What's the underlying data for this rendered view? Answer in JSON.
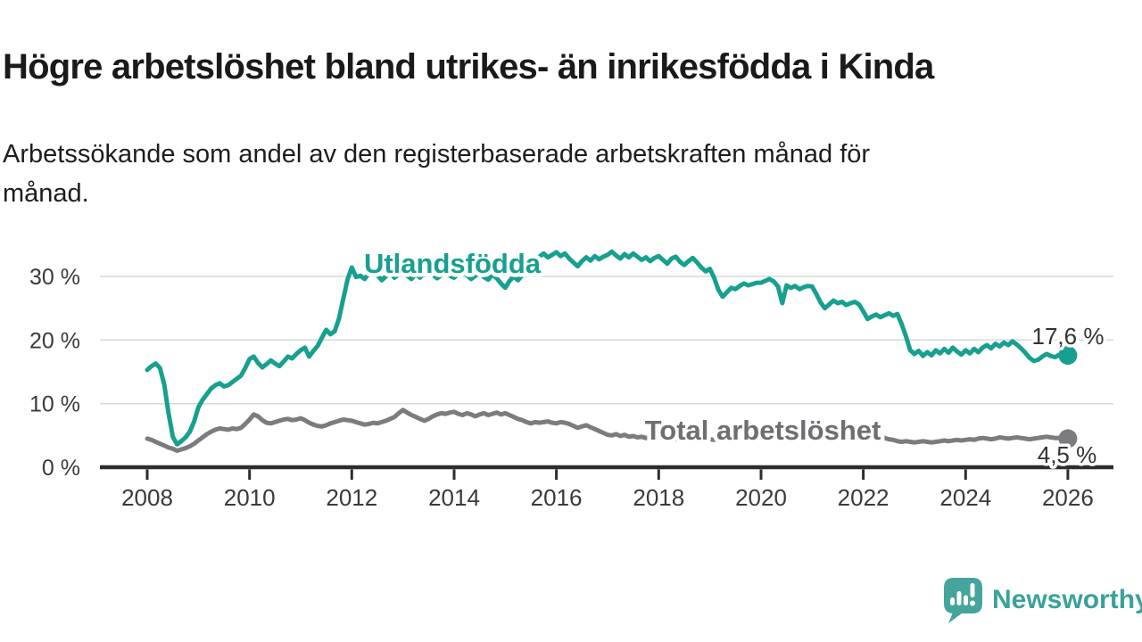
{
  "header": {
    "title": "Högre arbetslöshet bland utrikes- än inrikesfödda i Kinda",
    "subtitle": "Arbetssökande som andel av den registerbaserade arbetskraften månad för månad.",
    "subtitle_line1": "Arbetssökande som andel av den registerbaserade arbetskraften månad för",
    "subtitle_line2": "månad."
  },
  "chart_data": {
    "type": "line",
    "title": "Arbetssökande som andel av den registerbaserade arbetskraften månad för månad",
    "xlabel": "",
    "ylabel": "",
    "grid": "horizontal",
    "ylim": [
      0,
      35
    ],
    "x_range_years": [
      2008,
      2026.08
    ],
    "y_ticks": [
      {
        "value": 0,
        "label": "0 %"
      },
      {
        "value": 10,
        "label": "10 %"
      },
      {
        "value": 20,
        "label": "20 %"
      },
      {
        "value": 30,
        "label": "30 %"
      }
    ],
    "x_ticks": [
      "2008",
      "2010",
      "2012",
      "2014",
      "2016",
      "2018",
      "2020",
      "2022",
      "2024",
      "2026"
    ],
    "x_tick_years": [
      2008,
      2010,
      2012,
      2014,
      2016,
      2018,
      2020,
      2022,
      2024,
      2026
    ],
    "colors": {
      "grid": "#d9d9d9",
      "axis": "#2d2d2d",
      "tick_text": "#3a3a3a",
      "end_label_text": "#333333"
    },
    "series": [
      {
        "name": "Utlandsfödda",
        "slug": "utlandsfodda",
        "color": "#17a08f",
        "end_label": "17,6 %",
        "end_value": 17.6,
        "start_year": 2008,
        "points_per_year": 12,
        "monthly_values": [
          15.3,
          15.9,
          16.3,
          15.6,
          13.0,
          8.5,
          4.8,
          3.6,
          4.1,
          4.7,
          5.6,
          7.2,
          9.4,
          10.6,
          11.5,
          12.4,
          12.9,
          13.2,
          12.7,
          12.9,
          13.4,
          13.9,
          14.4,
          15.6,
          17.0,
          17.4,
          16.4,
          15.7,
          16.2,
          16.8,
          16.3,
          15.9,
          16.6,
          17.4,
          17.1,
          17.8,
          18.4,
          18.8,
          17.4,
          18.3,
          19.1,
          20.4,
          21.6,
          20.9,
          21.4,
          23.4,
          26.5,
          29.5,
          31.4,
          29.9,
          30.1,
          29.6,
          30.5,
          31.0,
          30.2,
          29.4,
          30.0,
          30.6,
          29.8,
          30.3,
          30.8,
          30.1,
          29.6,
          30.4,
          29.8,
          30.6,
          31.1,
          30.3,
          29.7,
          30.2,
          30.8,
          30.1,
          29.8,
          30.4,
          30.9,
          30.2,
          29.6,
          30.1,
          30.7,
          29.9,
          29.5,
          30.3,
          29.7,
          28.9,
          28.2,
          29.3,
          30.0,
          29.4,
          30.2,
          31.0,
          31.8,
          32.5,
          33.1,
          33.6,
          33.0,
          33.4,
          33.8,
          33.2,
          33.6,
          32.8,
          32.2,
          31.6,
          32.4,
          33.0,
          32.5,
          33.2,
          32.7,
          33.1,
          33.4,
          33.9,
          33.3,
          32.8,
          33.5,
          33.0,
          33.6,
          33.1,
          32.6,
          33.0,
          32.4,
          32.9,
          33.2,
          32.6,
          32.0,
          32.8,
          33.1,
          32.3,
          31.8,
          32.4,
          32.9,
          32.2,
          31.4,
          30.8,
          31.2,
          29.8,
          27.9,
          26.8,
          27.5,
          28.2,
          28.0,
          28.5,
          28.9,
          28.6,
          28.8,
          29.0,
          29.0,
          29.3,
          29.6,
          29.2,
          28.4,
          25.8,
          28.6,
          28.2,
          28.5,
          28.0,
          28.3,
          28.5,
          28.4,
          27.2,
          25.9,
          25.0,
          25.6,
          26.2,
          25.8,
          26.0,
          25.5,
          25.8,
          26.0,
          25.6,
          24.5,
          23.3,
          23.7,
          24.0,
          23.6,
          23.9,
          24.2,
          23.8,
          24.1,
          22.5,
          20.6,
          18.4,
          17.8,
          18.3,
          17.5,
          18.1,
          17.6,
          18.4,
          17.9,
          18.6,
          18.0,
          18.8,
          18.2,
          17.7,
          18.4,
          17.9,
          18.6,
          18.1,
          18.8,
          19.2,
          18.7,
          19.4,
          19.0,
          19.6,
          19.2,
          19.8,
          19.3,
          18.7,
          18.0,
          17.2,
          16.7,
          16.9,
          17.4,
          17.8,
          17.5,
          17.3,
          17.7,
          17.5,
          17.6
        ]
      },
      {
        "name": "Total arbetslöshet",
        "slug": "total-arbetsloshet",
        "color": "#7b7b80",
        "label_color": "#6e6e73",
        "end_label": "4,5 %",
        "end_value": 4.5,
        "start_year": 2008,
        "points_per_year": 12,
        "monthly_values": [
          4.5,
          4.3,
          4.0,
          3.7,
          3.4,
          3.1,
          2.9,
          2.6,
          2.8,
          3.0,
          3.3,
          3.7,
          4.2,
          4.7,
          5.2,
          5.6,
          5.9,
          6.1,
          6.0,
          5.9,
          6.1,
          6.0,
          6.2,
          6.8,
          7.5,
          8.3,
          8.0,
          7.4,
          7.0,
          6.9,
          7.1,
          7.3,
          7.5,
          7.6,
          7.4,
          7.5,
          7.7,
          7.4,
          7.0,
          6.7,
          6.5,
          6.4,
          6.6,
          6.9,
          7.1,
          7.3,
          7.5,
          7.4,
          7.3,
          7.1,
          6.9,
          6.7,
          6.8,
          7.0,
          6.9,
          7.1,
          7.3,
          7.6,
          7.9,
          8.5,
          9.0,
          8.6,
          8.2,
          7.9,
          7.6,
          7.3,
          7.6,
          8.0,
          8.3,
          8.5,
          8.4,
          8.6,
          8.7,
          8.4,
          8.2,
          8.5,
          8.3,
          8.0,
          8.3,
          8.5,
          8.2,
          8.4,
          8.6,
          8.3,
          8.5,
          8.2,
          7.9,
          7.6,
          7.4,
          7.1,
          6.9,
          7.1,
          7.0,
          7.1,
          7.2,
          7.0,
          6.9,
          7.1,
          7.0,
          6.8,
          6.5,
          6.2,
          6.4,
          6.6,
          6.3,
          6.0,
          5.7,
          5.4,
          5.1,
          5.0,
          5.2,
          4.9,
          5.1,
          4.8,
          4.9,
          4.7,
          4.8,
          4.6,
          4.7,
          4.8,
          4.6,
          4.5,
          4.4,
          4.5,
          4.4,
          4.3,
          4.4,
          4.3,
          4.2,
          4.3,
          4.2,
          4.3,
          4.4,
          4.3,
          4.4,
          4.5,
          4.4,
          4.6,
          4.5,
          4.6,
          4.7,
          4.6,
          4.7,
          4.8,
          5.0,
          5.3,
          5.6,
          5.8,
          5.9,
          5.8,
          5.7,
          5.6,
          5.5,
          5.4,
          5.3,
          5.2,
          5.1,
          5.0,
          4.9,
          4.8,
          4.7,
          4.6,
          4.5,
          4.4,
          4.4,
          4.3,
          4.4,
          4.5,
          4.7,
          5.0,
          4.9,
          4.7,
          4.8,
          4.6,
          4.4,
          4.3,
          4.1,
          4.0,
          4.1,
          4.0,
          3.9,
          4.0,
          4.1,
          4.0,
          3.9,
          4.0,
          4.1,
          4.2,
          4.1,
          4.2,
          4.3,
          4.2,
          4.3,
          4.4,
          4.3,
          4.5,
          4.6,
          4.5,
          4.4,
          4.5,
          4.7,
          4.6,
          4.5,
          4.6,
          4.7,
          4.6,
          4.5,
          4.4,
          4.5,
          4.6,
          4.7,
          4.8,
          4.7,
          4.6,
          4.6,
          4.5,
          4.5
        ]
      }
    ],
    "legend_position": "inline-labels"
  },
  "footer": {
    "brand": "Newsworthy",
    "brand_color": "#3aa29a"
  }
}
